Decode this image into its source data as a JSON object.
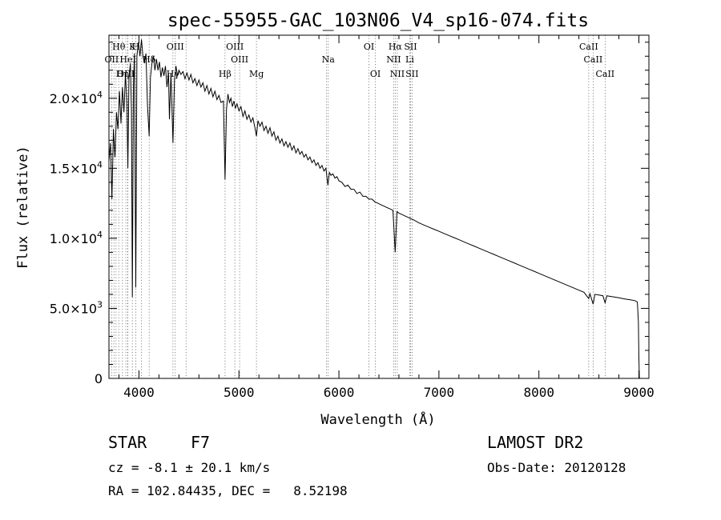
{
  "chart_data": {
    "type": "line",
    "title": "spec-55955-GAC_103N06_V4_sp16-074.fits",
    "xlabel": "Wavelength (Å)",
    "ylabel": "Flux (relative)",
    "xlim": [
      3700,
      9100
    ],
    "ylim": [
      0,
      24500
    ],
    "x_ticks": [
      4000,
      5000,
      6000,
      7000,
      8000,
      9000
    ],
    "x_tick_labels": [
      "4000",
      "5000",
      "6000",
      "7000",
      "8000",
      "9000"
    ],
    "y_ticks": [
      0,
      5000,
      10000,
      15000,
      20000
    ],
    "y_tick_labels": [
      {
        "mant": "0",
        "exp": ""
      },
      {
        "mant": "5.0×10",
        "exp": "3"
      },
      {
        "mant": "1.0×10",
        "exp": "4"
      },
      {
        "mant": "1.5×10",
        "exp": "4"
      },
      {
        "mant": "2.0×10",
        "exp": "4"
      }
    ],
    "spectrum": [
      [
        3700,
        15500
      ],
      [
        3715,
        16800
      ],
      [
        3730,
        12800
      ],
      [
        3745,
        17800
      ],
      [
        3760,
        15800
      ],
      [
        3775,
        19000
      ],
      [
        3790,
        17800
      ],
      [
        3805,
        20500
      ],
      [
        3820,
        18200
      ],
      [
        3835,
        20800
      ],
      [
        3850,
        19000
      ],
      [
        3865,
        21800
      ],
      [
        3880,
        19500
      ],
      [
        3889,
        15000
      ],
      [
        3900,
        21500
      ],
      [
        3915,
        22500
      ],
      [
        3925,
        19000
      ],
      [
        3934,
        5800
      ],
      [
        3945,
        21000
      ],
      [
        3955,
        23200
      ],
      [
        3968,
        6500
      ],
      [
        3980,
        23000
      ],
      [
        3995,
        24000
      ],
      [
        4010,
        23000
      ],
      [
        4025,
        24200
      ],
      [
        4040,
        23000
      ],
      [
        4055,
        22500
      ],
      [
        4070,
        23200
      ],
      [
        4085,
        19500
      ],
      [
        4102,
        17300
      ],
      [
        4115,
        21500
      ],
      [
        4130,
        22500
      ],
      [
        4145,
        23000
      ],
      [
        4160,
        22000
      ],
      [
        4175,
        22800
      ],
      [
        4190,
        22000
      ],
      [
        4205,
        22600
      ],
      [
        4220,
        21500
      ],
      [
        4235,
        22200
      ],
      [
        4250,
        21600
      ],
      [
        4265,
        22300
      ],
      [
        4280,
        20800
      ],
      [
        4295,
        21800
      ],
      [
        4305,
        18500
      ],
      [
        4320,
        21800
      ],
      [
        4340,
        16800
      ],
      [
        4355,
        21300
      ],
      [
        4370,
        22300
      ],
      [
        4385,
        21600
      ],
      [
        4400,
        22000
      ],
      [
        4420,
        21700
      ],
      [
        4440,
        21900
      ],
      [
        4460,
        21400
      ],
      [
        4480,
        21800
      ],
      [
        4500,
        21300
      ],
      [
        4520,
        21700
      ],
      [
        4540,
        21100
      ],
      [
        4560,
        21400
      ],
      [
        4580,
        20900
      ],
      [
        4600,
        21300
      ],
      [
        4620,
        20800
      ],
      [
        4640,
        21100
      ],
      [
        4660,
        20500
      ],
      [
        4680,
        20900
      ],
      [
        4700,
        20300
      ],
      [
        4720,
        20700
      ],
      [
        4740,
        20100
      ],
      [
        4760,
        20500
      ],
      [
        4780,
        19900
      ],
      [
        4800,
        20200
      ],
      [
        4820,
        19700
      ],
      [
        4845,
        19800
      ],
      [
        4861,
        14200
      ],
      [
        4875,
        19200
      ],
      [
        4890,
        20300
      ],
      [
        4905,
        19700
      ],
      [
        4920,
        20000
      ],
      [
        4935,
        19400
      ],
      [
        4950,
        19800
      ],
      [
        4965,
        19300
      ],
      [
        4980,
        19600
      ],
      [
        5000,
        19100
      ],
      [
        5020,
        19400
      ],
      [
        5040,
        18700
      ],
      [
        5060,
        19100
      ],
      [
        5080,
        18500
      ],
      [
        5100,
        18800
      ],
      [
        5120,
        18300
      ],
      [
        5140,
        18600
      ],
      [
        5160,
        17900
      ],
      [
        5175,
        17300
      ],
      [
        5190,
        18400
      ],
      [
        5210,
        18000
      ],
      [
        5230,
        18300
      ],
      [
        5250,
        17700
      ],
      [
        5270,
        18000
      ],
      [
        5290,
        17500
      ],
      [
        5310,
        17900
      ],
      [
        5330,
        17300
      ],
      [
        5350,
        17600
      ],
      [
        5370,
        17000
      ],
      [
        5390,
        17300
      ],
      [
        5410,
        16800
      ],
      [
        5430,
        17100
      ],
      [
        5450,
        16600
      ],
      [
        5470,
        16900
      ],
      [
        5490,
        16500
      ],
      [
        5510,
        16800
      ],
      [
        5530,
        16300
      ],
      [
        5550,
        16600
      ],
      [
        5570,
        16100
      ],
      [
        5590,
        16400
      ],
      [
        5610,
        16000
      ],
      [
        5630,
        16200
      ],
      [
        5650,
        15800
      ],
      [
        5670,
        16000
      ],
      [
        5690,
        15600
      ],
      [
        5710,
        15800
      ],
      [
        5730,
        15400
      ],
      [
        5750,
        15600
      ],
      [
        5770,
        15200
      ],
      [
        5790,
        15400
      ],
      [
        5810,
        15000
      ],
      [
        5830,
        15200
      ],
      [
        5850,
        14800
      ],
      [
        5870,
        15000
      ],
      [
        5890,
        13800
      ],
      [
        5905,
        14700
      ],
      [
        5920,
        14500
      ],
      [
        5940,
        14600
      ],
      [
        5960,
        14300
      ],
      [
        5980,
        14400
      ],
      [
        6000,
        14100
      ],
      [
        6030,
        14000
      ],
      [
        6060,
        13700
      ],
      [
        6090,
        13800
      ],
      [
        6120,
        13500
      ],
      [
        6150,
        13500
      ],
      [
        6180,
        13200
      ],
      [
        6210,
        13300
      ],
      [
        6240,
        13000
      ],
      [
        6270,
        13000
      ],
      [
        6300,
        12800
      ],
      [
        6330,
        12800
      ],
      [
        6360,
        12600
      ],
      [
        6390,
        12500
      ],
      [
        6420,
        12400
      ],
      [
        6450,
        12300
      ],
      [
        6480,
        12200
      ],
      [
        6510,
        12100
      ],
      [
        6540,
        12000
      ],
      [
        6563,
        9000
      ],
      [
        6580,
        11900
      ],
      [
        6600,
        11800
      ],
      [
        6630,
        11700
      ],
      [
        6660,
        11600
      ],
      [
        6690,
        11500
      ],
      [
        6720,
        11400
      ],
      [
        6750,
        11300
      ],
      [
        6800,
        11100
      ],
      [
        6850,
        10950
      ],
      [
        6900,
        10800
      ],
      [
        6950,
        10650
      ],
      [
        7000,
        10500
      ],
      [
        7050,
        10350
      ],
      [
        7100,
        10200
      ],
      [
        7150,
        10050
      ],
      [
        7200,
        9900
      ],
      [
        7250,
        9750
      ],
      [
        7300,
        9600
      ],
      [
        7350,
        9450
      ],
      [
        7400,
        9300
      ],
      [
        7450,
        9150
      ],
      [
        7500,
        9000
      ],
      [
        7550,
        8850
      ],
      [
        7600,
        8700
      ],
      [
        7650,
        8550
      ],
      [
        7700,
        8400
      ],
      [
        7750,
        8250
      ],
      [
        7800,
        8100
      ],
      [
        7850,
        7950
      ],
      [
        7900,
        7800
      ],
      [
        7950,
        7650
      ],
      [
        8000,
        7500
      ],
      [
        8050,
        7350
      ],
      [
        8100,
        7200
      ],
      [
        8150,
        7050
      ],
      [
        8200,
        6900
      ],
      [
        8250,
        6750
      ],
      [
        8300,
        6600
      ],
      [
        8350,
        6450
      ],
      [
        8400,
        6300
      ],
      [
        8450,
        6150
      ],
      [
        8498,
        5700
      ],
      [
        8510,
        6050
      ],
      [
        8542,
        5300
      ],
      [
        8560,
        6000
      ],
      [
        8600,
        5950
      ],
      [
        8640,
        5900
      ],
      [
        8662,
        5400
      ],
      [
        8680,
        5900
      ],
      [
        8720,
        5850
      ],
      [
        8760,
        5800
      ],
      [
        8800,
        5750
      ],
      [
        8840,
        5700
      ],
      [
        8880,
        5650
      ],
      [
        8920,
        5600
      ],
      [
        8960,
        5550
      ],
      [
        8985,
        5450
      ],
      [
        8995,
        4000
      ],
      [
        9000,
        1500
      ],
      [
        9005,
        0
      ]
    ],
    "line_markers": [
      {
        "label": "Hθ",
        "x": 3798,
        "row": 0
      },
      {
        "label": "K",
        "x": 3934,
        "row": 0
      },
      {
        "label": "H",
        "x": 3968,
        "row": 0
      },
      {
        "label": "OIII",
        "x": 4363,
        "row": 0
      },
      {
        "label": "OIII",
        "x": 4959,
        "row": 0
      },
      {
        "label": "OI",
        "x": 6300,
        "row": 0
      },
      {
        "label": "Hα",
        "x": 6563,
        "row": 0
      },
      {
        "label": "SII",
        "x": 6716,
        "row": 0
      },
      {
        "label": "CaII",
        "x": 8498,
        "row": 0
      },
      {
        "label": "OII",
        "x": 3727,
        "row": 1
      },
      {
        "label": "HeI",
        "x": 3889,
        "row": 1
      },
      {
        "label": "Hδ",
        "x": 4102,
        "row": 1
      },
      {
        "label": "OIII",
        "x": 5007,
        "row": 1
      },
      {
        "label": "Na",
        "x": 5893,
        "row": 1
      },
      {
        "label": "NII",
        "x": 6548,
        "row": 1
      },
      {
        "label": "Li",
        "x": 6708,
        "row": 1
      },
      {
        "label": "CaII",
        "x": 8542,
        "row": 1
      },
      {
        "label": "OIII",
        "x": 3869,
        "row": 2
      },
      {
        "label": "Hη",
        "x": 3835,
        "row": 2
      },
      {
        "label": "Hγ",
        "x": 4340,
        "row": 2
      },
      {
        "label": "Hβ",
        "x": 4861,
        "row": 2
      },
      {
        "label": "Mg",
        "x": 5175,
        "row": 2
      },
      {
        "label": "OI",
        "x": 6364,
        "row": 2
      },
      {
        "label": "NII",
        "x": 6584,
        "row": 2
      },
      {
        "label": "SII",
        "x": 6731,
        "row": 2
      },
      {
        "label": "CaII",
        "x": 8662,
        "row": 2
      }
    ],
    "extra_marker_lines": [
      3750,
      3771,
      3889,
      4026,
      4471,
      5876
    ]
  },
  "info": {
    "class_label": "STAR",
    "subclass": "F7",
    "survey": "LAMOST DR2",
    "cz": "cz = -8.1 ± 20.1 km/s",
    "obs_date": "Obs-Date: 20120128",
    "radec": "RA = 102.84435, DEC =   8.52198"
  }
}
